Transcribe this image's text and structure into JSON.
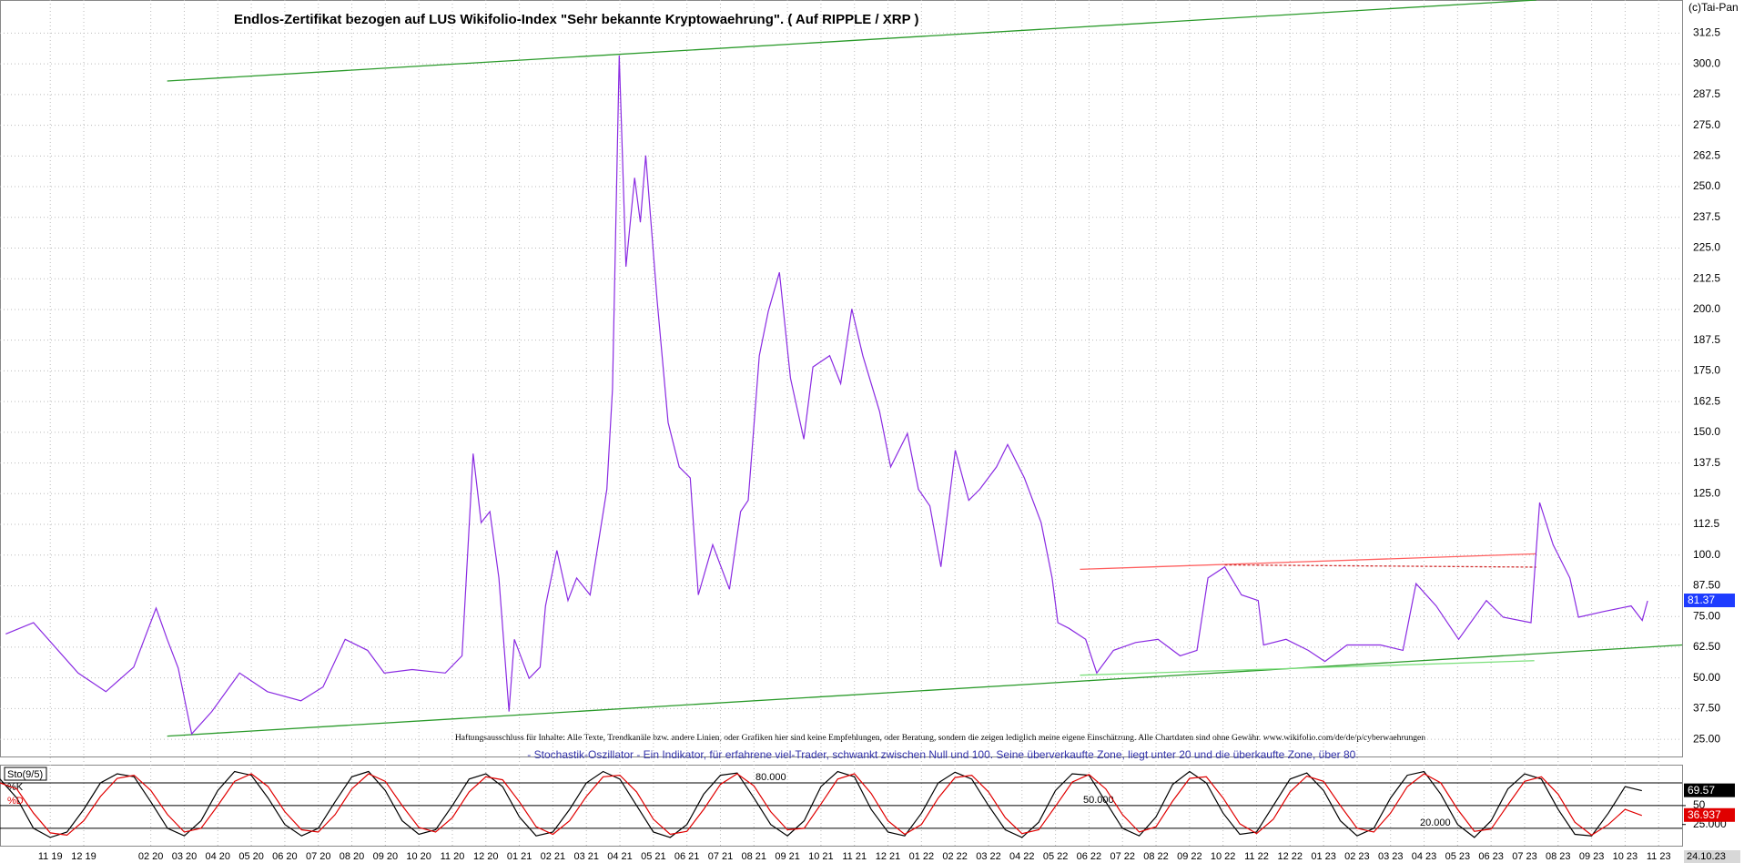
{
  "chart_data": [
    {
      "type": "line",
      "title": "Endlos-Zertifikat bezogen auf LUS Wikifolio-Index \"Sehr bekannte Kryptowaehrung\". ( Auf RIPPLE / XRP )",
      "copyright": "(c)Tai-Pan",
      "disclaimer": "Haftungsausschluss für Inhalte: Alle Texte, Trendkanäle bzw. andere Linien, oder Grafiken hier sind keine Empfehlungen, oder Beratung, sondern die zeigen lediglich meine eigene Einschätzung. Alle Chartdaten sind ohne Gewähr. www.wikifolio.com/de/de/p/cyberwaehrungen",
      "color": "#8a2be2",
      "x": [
        -1.33,
        -0.5,
        0.83,
        1.66,
        2.49,
        3.16,
        3.49,
        3.82,
        4.22,
        4.82,
        5.65,
        6.48,
        7.48,
        8.14,
        8.8,
        9.47,
        9.97,
        10.8,
        11.79,
        12.29,
        12.62,
        12.86,
        13.12,
        13.39,
        13.69,
        13.85,
        14.29,
        14.62,
        14.78,
        15.12,
        15.45,
        15.71,
        16.11,
        16.61,
        16.78,
        16.98,
        17.18,
        17.44,
        17.61,
        17.77,
        18.11,
        18.44,
        18.77,
        19.1,
        19.34,
        19.77,
        20.27,
        20.6,
        20.83,
        21.16,
        21.43,
        21.76,
        22.09,
        22.49,
        22.76,
        23.26,
        23.59,
        23.92,
        24.25,
        24.75,
        25.08,
        25.58,
        25.91,
        26.25,
        26.58,
        27.01,
        27.41,
        27.74,
        28.24,
        28.57,
        29.07,
        29.57,
        29.9,
        30.07,
        30.4,
        30.9,
        31.23,
        31.73,
        32.39,
        33.06,
        33.72,
        34.22,
        34.55,
        35.05,
        35.55,
        36.05,
        36.21,
        36.88,
        37.54,
        38.04,
        38.7,
        39.7,
        40.37,
        40.76,
        41.36,
        42.03,
        42.86,
        43.36,
        44.19,
        44.45,
        44.85,
        45.35,
        45.61,
        46.35,
        47.18,
        47.51,
        47.67
      ],
      "values": [
        67.9,
        72.5,
        52,
        44.4,
        54.4,
        78.4,
        65.7,
        54,
        27.2,
        36.3,
        52,
        44.4,
        40.7,
        46.3,
        65.7,
        61.2,
        52,
        53.4,
        52,
        59,
        141.3,
        113.2,
        117.7,
        90.7,
        36.3,
        65.7,
        49.8,
        54.4,
        79.3,
        101.9,
        81.5,
        90.7,
        83.8,
        126.8,
        167.6,
        303.4,
        217.4,
        253.6,
        235.5,
        262.7,
        203.8,
        154,
        135.9,
        131.4,
        83.8,
        104.2,
        86.1,
        117.7,
        122.3,
        181.2,
        199.3,
        215.1,
        172.1,
        147.2,
        176.6,
        181.2,
        169.8,
        200.2,
        181.2,
        158.5,
        135.9,
        149.5,
        126.8,
        120,
        95.2,
        142.7,
        122.3,
        126.8,
        135.9,
        145,
        131.4,
        113.2,
        90.7,
        72.5,
        70.2,
        65.7,
        52,
        61.2,
        64.4,
        65.7,
        59,
        61.2,
        90.7,
        95.2,
        83.8,
        81.5,
        63.4,
        65.7,
        61.2,
        56.7,
        63.4,
        63.4,
        61.2,
        88.4,
        79.3,
        65.7,
        81.5,
        74.7,
        72.5,
        121.4,
        104.2,
        90.7,
        74.7,
        77,
        79.3,
        73.4,
        81.37
      ],
      "trendlines": [
        {
          "color": "#2a9a2a",
          "x": [
            3.49,
            44.35
          ],
          "y": [
            293,
            326
          ]
        },
        {
          "color": "#2a9a2a",
          "x": [
            3.49,
            48.7
          ],
          "y": [
            26.3,
            63.4
          ]
        },
        {
          "color": "#ff6060",
          "x": [
            30.73,
            44.35
          ],
          "y": [
            94.2,
            100.5
          ]
        },
        {
          "color": "#7de07d",
          "x": [
            30.73,
            44.29
          ],
          "y": [
            51.1,
            57
          ]
        },
        {
          "color": "#d03030",
          "x": [
            35.05,
            44.35
          ],
          "y": [
            96,
            95.1
          ],
          "dash": true
        }
      ],
      "xlim": [
        -1.5,
        48.7
      ],
      "ylim": [
        18,
        326
      ],
      "yticks": [
        {
          "value": 25,
          "label": "25.00"
        },
        {
          "value": 37.5,
          "label": "37.50"
        },
        {
          "value": 50,
          "label": "50.00"
        },
        {
          "value": 62.5,
          "label": "62.50"
        },
        {
          "value": 75,
          "label": "75.00"
        },
        {
          "value": 87.5,
          "label": "87.50"
        },
        {
          "value": 100,
          "label": "100.0"
        },
        112.5,
        {
          "value": 125,
          "label": "125.0"
        },
        137.5,
        {
          "value": 150,
          "label": "150.0"
        },
        162.5,
        {
          "value": 175,
          "label": "175.0"
        },
        187.5,
        {
          "value": 200,
          "label": "200.0"
        },
        212.5,
        {
          "value": 225,
          "label": "225.0"
        },
        237.5,
        {
          "value": 250,
          "label": "250.0"
        },
        262.5,
        {
          "value": 275,
          "label": "275.0"
        },
        287.5,
        {
          "value": 300,
          "label": "300.0"
        },
        312.5
      ],
      "grid": true
    },
    {
      "type": "line",
      "title": "- Stochastik-Oszillator - Ein Indikator, für erfahrene viel-Trader, schwankt zwischen Null und 100. Seine überverkaufte Zone, liegt unter 20 und die überkaufte Zone, über 80.",
      "label": "Sto(9/5)",
      "last_date": "24.10.23",
      "x": [
        -1.5,
        -1,
        -0.5,
        0,
        0.5,
        1,
        1.5,
        2,
        2.5,
        3,
        3.5,
        4,
        4.5,
        5,
        5.5,
        6,
        6.5,
        7,
        7.5,
        8,
        8.5,
        9,
        9.5,
        10,
        10.5,
        11,
        11.5,
        12,
        12.5,
        13,
        13.5,
        14,
        14.5,
        15,
        15.5,
        16,
        16.5,
        17,
        17.5,
        18,
        18.5,
        19,
        19.5,
        20,
        20.5,
        21,
        21.5,
        22,
        22.5,
        23,
        23.5,
        24,
        24.5,
        25,
        25.5,
        26,
        26.5,
        27,
        27.5,
        28,
        28.5,
        29,
        29.5,
        30,
        30.5,
        31,
        31.5,
        32,
        32.5,
        33,
        33.5,
        34,
        34.5,
        35,
        35.5,
        36,
        36.5,
        37,
        37.5,
        38,
        38.5,
        39,
        39.5,
        40,
        40.5,
        41,
        41.5,
        42,
        42.5,
        43,
        43.5,
        44,
        44.5,
        45,
        45.5,
        46,
        46.5,
        47,
        47.5
      ],
      "series": [
        {
          "name": "%K",
          "color": "#000000",
          "values": [
            85,
            60,
            20,
            8,
            15,
            45,
            80,
            92,
            88,
            55,
            20,
            10,
            30,
            70,
            95,
            90,
            60,
            25,
            10,
            20,
            55,
            88,
            95,
            70,
            30,
            12,
            18,
            50,
            85,
            92,
            75,
            35,
            10,
            15,
            45,
            80,
            95,
            85,
            50,
            15,
            8,
            25,
            65,
            90,
            93,
            60,
            25,
            10,
            30,
            75,
            95,
            88,
            45,
            15,
            10,
            40,
            80,
            94,
            85,
            50,
            18,
            8,
            28,
            70,
            92,
            90,
            55,
            20,
            10,
            35,
            78,
            95,
            80,
            40,
            12,
            15,
            50,
            85,
            93,
            70,
            30,
            10,
            20,
            60,
            90,
            95,
            65,
            25,
            8,
            30,
            72,
            92,
            85,
            45,
            12,
            10,
            40,
            75,
            69.57
          ]
        },
        {
          "name": "%D",
          "color": "#e00000",
          "values": [
            80,
            72,
            40,
            14,
            11,
            30,
            62,
            86,
            90,
            70,
            38,
            15,
            20,
            50,
            82,
            92,
            75,
            42,
            18,
            15,
            38,
            72,
            92,
            82,
            50,
            21,
            15,
            34,
            68,
            88,
            84,
            55,
            22,
            12,
            30,
            62,
            88,
            90,
            68,
            32,
            12,
            16,
            45,
            78,
            92,
            76,
            42,
            18,
            20,
            52,
            85,
            92,
            66,
            30,
            12,
            25,
            60,
            87,
            90,
            68,
            34,
            13,
            18,
            49,
            81,
            91,
            72,
            38,
            15,
            22,
            56,
            86,
            88,
            60,
            26,
            13,
            32,
            68,
            89,
            82,
            50,
            20,
            15,
            40,
            75,
            92,
            80,
            45,
            16,
            19,
            51,
            82,
            88,
            65,
            28,
            11,
            25,
            45,
            36.937
          ]
        }
      ],
      "levels": [
        {
          "value": 80,
          "label": "80.000"
        },
        {
          "value": 50,
          "label": "50.000"
        },
        {
          "value": 20,
          "label": "20.000"
        }
      ],
      "xlim": [
        -1.5,
        48.7
      ],
      "ylim": [
        -3,
        104
      ],
      "yticks": [
        50,
        {
          "value": 25,
          "label": "25.000"
        }
      ],
      "xticks": [
        {
          "value": 0,
          "label": "11 19"
        },
        {
          "value": 1,
          "label": "12 19"
        },
        {
          "value": 3,
          "label": "02 20"
        },
        {
          "value": 4,
          "label": "03 20"
        },
        {
          "value": 5,
          "label": "04 20"
        },
        {
          "value": 6,
          "label": "05 20"
        },
        {
          "value": 7,
          "label": "06 20"
        },
        {
          "value": 8,
          "label": "07 20"
        },
        {
          "value": 9,
          "label": "08 20"
        },
        {
          "value": 10,
          "label": "09 20"
        },
        {
          "value": 11,
          "label": "10 20"
        },
        {
          "value": 12,
          "label": "11 20"
        },
        {
          "value": 13,
          "label": "12 20"
        },
        {
          "value": 14,
          "label": "01 21"
        },
        {
          "value": 15,
          "label": "02 21"
        },
        {
          "value": 16,
          "label": "03 21"
        },
        {
          "value": 17,
          "label": "04 21"
        },
        {
          "value": 18,
          "label": "05 21"
        },
        {
          "value": 19,
          "label": "06 21"
        },
        {
          "value": 20,
          "label": "07 21"
        },
        {
          "value": 21,
          "label": "08 21"
        },
        {
          "value": 22,
          "label": "09 21"
        },
        {
          "value": 23,
          "label": "10 21"
        },
        {
          "value": 24,
          "label": "11 21"
        },
        {
          "value": 25,
          "label": "12 21"
        },
        {
          "value": 26,
          "label": "01 22"
        },
        {
          "value": 27,
          "label": "02 22"
        },
        {
          "value": 28,
          "label": "03 22"
        },
        {
          "value": 29,
          "label": "04 22"
        },
        {
          "value": 30,
          "label": "05 22"
        },
        {
          "value": 31,
          "label": "06 22"
        },
        {
          "value": 32,
          "label": "07 22"
        },
        {
          "value": 33,
          "label": "08 22"
        },
        {
          "value": 34,
          "label": "09 22"
        },
        {
          "value": 35,
          "label": "10 22"
        },
        {
          "value": 36,
          "label": "11 22"
        },
        {
          "value": 37,
          "label": "12 22"
        },
        {
          "value": 38,
          "label": "01 23"
        },
        {
          "value": 39,
          "label": "02 23"
        },
        {
          "value": 40,
          "label": "03 23"
        },
        {
          "value": 41,
          "label": "04 23"
        },
        {
          "value": 42,
          "label": "05 23"
        },
        {
          "value": 43,
          "label": "06 23"
        },
        {
          "value": 44,
          "label": "07 23"
        },
        {
          "value": 45,
          "label": "08 23"
        },
        {
          "value": 46,
          "label": "09 23"
        },
        {
          "value": 47,
          "label": "10 23"
        },
        {
          "value": 48,
          "label": "11 23"
        }
      ]
    }
  ]
}
